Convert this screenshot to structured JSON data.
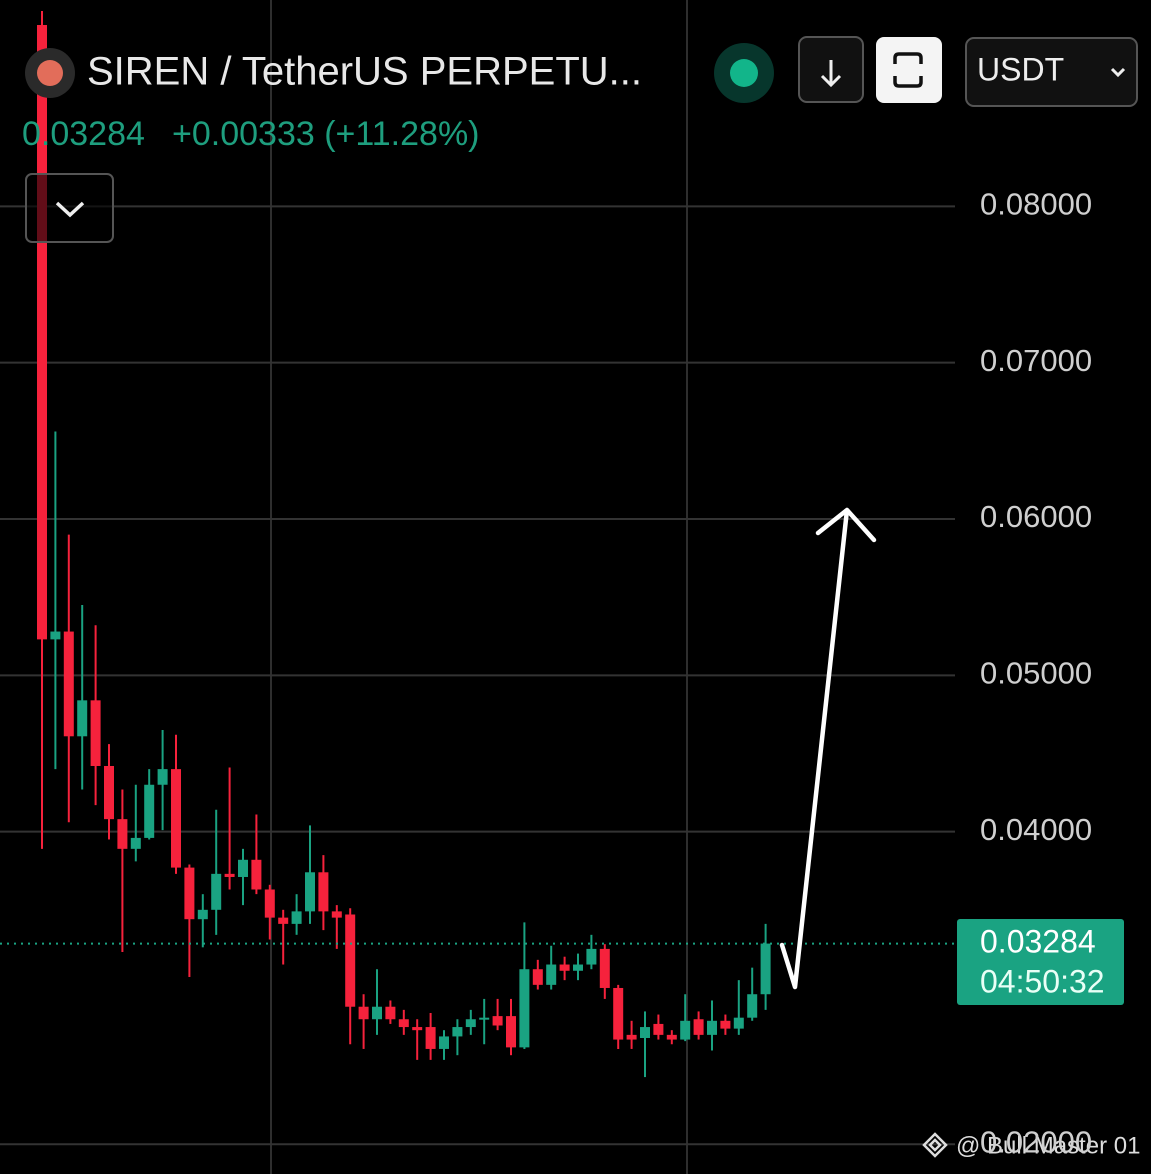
{
  "chart_data": {
    "type": "candlestick",
    "title": "SIREN / TetherUS PERPETU...",
    "change": "+0.00333 (+11.28%)",
    "quote_currency": "USDT",
    "countdown": "04:50:32",
    "watermark": "@ Bull Master 01",
    "up_color": "#1aa382",
    "down_color": "#f6223c",
    "grid": true,
    "ylim": [
      0.0181,
      0.0932
    ],
    "yticks": [
      {
        "value": 0.08,
        "label": "0.08000"
      },
      {
        "value": 0.07,
        "label": "0.07000"
      },
      {
        "value": 0.06,
        "label": "0.06000"
      },
      {
        "value": 0.05,
        "label": "0.05000"
      },
      {
        "value": 0.04,
        "label": "0.04000"
      },
      {
        "value": 0.02,
        "label": "0.02000"
      }
    ],
    "open": [
      0.0916,
      0.0523,
      0.0528,
      0.0461,
      0.0484,
      0.0442,
      0.0408,
      0.0389,
      0.0396,
      0.043,
      0.044,
      0.0377,
      0.0344,
      0.035,
      0.0373,
      0.0371,
      0.0382,
      0.0363,
      0.0345,
      0.0341,
      0.0349,
      0.0374,
      0.0349,
      0.0347,
      0.0288,
      0.028,
      0.0288,
      0.028,
      0.0275,
      0.0275,
      0.0261,
      0.0269,
      0.0275,
      0.028,
      0.0282,
      0.0282,
      0.0262,
      0.0312,
      0.0302,
      0.0315,
      0.0311,
      0.0315,
      0.0325,
      0.03,
      0.027,
      0.0268,
      0.0277,
      0.027,
      0.0267,
      0.028,
      0.027,
      0.0279,
      0.0274,
      0.0281,
      0.0296
    ],
    "high": [
      0.0925,
      0.0656,
      0.059,
      0.0545,
      0.0532,
      0.0456,
      0.0427,
      0.043,
      0.044,
      0.0465,
      0.0462,
      0.0379,
      0.036,
      0.0414,
      0.0441,
      0.0389,
      0.0411,
      0.0366,
      0.035,
      0.036,
      0.0404,
      0.0385,
      0.0353,
      0.0351,
      0.0296,
      0.0312,
      0.0292,
      0.0286,
      0.028,
      0.0284,
      0.0273,
      0.028,
      0.0286,
      0.0293,
      0.0293,
      0.0293,
      0.0342,
      0.0318,
      0.0327,
      0.032,
      0.0322,
      0.0334,
      0.0328,
      0.0302,
      0.0279,
      0.0285,
      0.0283,
      0.0273,
      0.0296,
      0.0285,
      0.0292,
      0.0283,
      0.0305,
      0.0313,
      0.0341
    ],
    "low": [
      0.0389,
      0.044,
      0.0406,
      0.0427,
      0.0417,
      0.0395,
      0.0323,
      0.0381,
      0.0395,
      0.0401,
      0.0373,
      0.0307,
      0.0326,
      0.0334,
      0.0363,
      0.0353,
      0.036,
      0.0331,
      0.0315,
      0.0334,
      0.0341,
      0.0337,
      0.0325,
      0.0264,
      0.0261,
      0.027,
      0.0277,
      0.027,
      0.0254,
      0.0254,
      0.0254,
      0.0257,
      0.027,
      0.0264,
      0.0273,
      0.0257,
      0.0261,
      0.0299,
      0.0299,
      0.0305,
      0.0305,
      0.0312,
      0.0293,
      0.0261,
      0.0261,
      0.0243,
      0.0267,
      0.0264,
      0.0266,
      0.0267,
      0.026,
      0.027,
      0.027,
      0.0279,
      0.0286
    ],
    "close": [
      0.0523,
      0.0528,
      0.0461,
      0.0484,
      0.0442,
      0.0408,
      0.0389,
      0.0396,
      0.043,
      0.044,
      0.0377,
      0.0344,
      0.035,
      0.0373,
      0.0371,
      0.0382,
      0.0363,
      0.0345,
      0.0341,
      0.0349,
      0.0374,
      0.0349,
      0.0345,
      0.0288,
      0.028,
      0.0288,
      0.028,
      0.0275,
      0.0273,
      0.0261,
      0.0269,
      0.0275,
      0.028,
      0.0281,
      0.0276,
      0.0262,
      0.0312,
      0.0302,
      0.0315,
      0.0311,
      0.0315,
      0.0325,
      0.03,
      0.0267,
      0.0267,
      0.0275,
      0.027,
      0.0267,
      0.0279,
      0.027,
      0.0279,
      0.0274,
      0.0281,
      0.0296,
      0.03284
    ]
  }
}
